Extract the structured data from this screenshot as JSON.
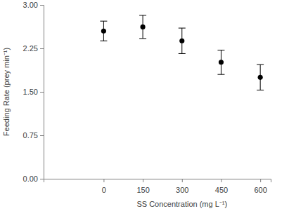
{
  "chart_data": {
    "type": "scatter",
    "x_label": "SS Concentration (mg L⁻¹)",
    "y_label": "Feeding Rate (prey min⁻¹)",
    "x": [
      0,
      150,
      300,
      450,
      600
    ],
    "values": [
      2.55,
      2.62,
      2.38,
      2.01,
      1.75
    ],
    "errors": [
      0.17,
      0.2,
      0.22,
      0.21,
      0.22
    ],
    "color": "#000000",
    "marker": "circle",
    "xlim": [
      -230,
      640
    ],
    "xticks": [
      0,
      150,
      300,
      450,
      600
    ],
    "ylim": [
      0,
      3
    ],
    "yticks": [
      {
        "value": 0,
        "label": "0.00"
      },
      {
        "value": 0.75,
        "label": "0.75"
      },
      {
        "value": 1.5,
        "label": "1.50"
      },
      {
        "value": 2.25,
        "label": "2.25"
      },
      {
        "value": 3,
        "label": "3.00"
      }
    ],
    "grid": false
  }
}
